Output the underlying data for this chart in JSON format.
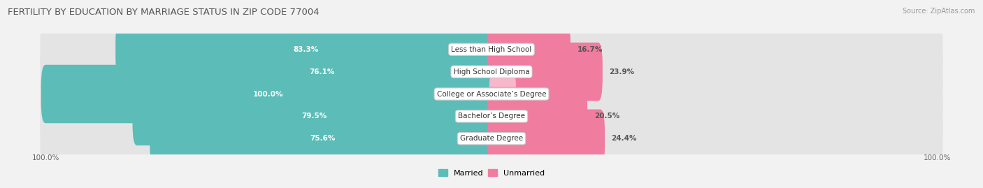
{
  "title": "FERTILITY BY EDUCATION BY MARRIAGE STATUS IN ZIP CODE 77004",
  "source": "Source: ZipAtlas.com",
  "categories": [
    "Less than High School",
    "High School Diploma",
    "College or Associate’s Degree",
    "Bachelor’s Degree",
    "Graduate Degree"
  ],
  "married_pct": [
    83.3,
    76.1,
    100.0,
    79.5,
    75.6
  ],
  "unmarried_pct": [
    16.7,
    23.9,
    0.0,
    20.5,
    24.4
  ],
  "married_color": "#5bbcb8",
  "unmarried_color": "#f07ca0",
  "unmarried_color_pale": "#f7b8cc",
  "background_color": "#f2f2f2",
  "bar_background": "#e4e4e4",
  "title_fontsize": 9.5,
  "source_fontsize": 7,
  "bar_label_fontsize": 7.5,
  "category_fontsize": 7.5,
  "legend_fontsize": 8,
  "axis_label_fontsize": 7.5,
  "bar_height": 0.62,
  "x_left_label": "100.0%",
  "x_right_label": "100.0%"
}
